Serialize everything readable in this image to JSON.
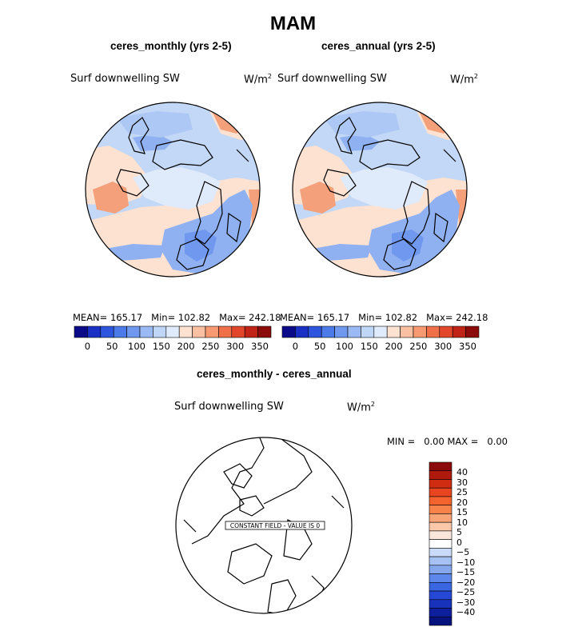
{
  "title": "MAM",
  "panels": [
    {
      "subtitle": "ceres_monthly (yrs 2-5)",
      "variable": "Surf downwelling SW",
      "units_base": "W/m",
      "units_exp": "2",
      "stats": {
        "mean_label": "MEAN=",
        "mean": "165.17",
        "min_label": "Min=",
        "min": "102.82",
        "max_label": "Max=",
        "max": "242.18"
      }
    },
    {
      "subtitle": "ceres_annual (yrs 2-5)",
      "variable": "Surf downwelling SW",
      "units_base": "W/m",
      "units_exp": "2",
      "stats": {
        "mean_label": "MEAN=",
        "mean": "165.17",
        "min_label": "Min=",
        "min": "102.82",
        "max_label": "Max=",
        "max": "242.18"
      }
    }
  ],
  "diff_panel": {
    "subtitle": "ceres_monthly - ceres_annual",
    "variable": "Surf downwelling SW",
    "units_base": "W/m",
    "units_exp": "2",
    "min_label": "MIN =",
    "min": "0.00",
    "max_label": "MAX =",
    "max": "0.00",
    "annotation": "CONSTANT FIELD - VALUE IS 0"
  },
  "chart_data": [
    {
      "type": "heatmap",
      "title": "ceres_monthly (yrs 2-5)",
      "projection": "north-polar-stereographic",
      "colorbar_labels": [
        "0",
        "50",
        "100",
        "150",
        "200",
        "250",
        "300",
        "350"
      ],
      "colorbar_colors": [
        "#0b0b8a",
        "#1a30c4",
        "#2d55dd",
        "#4c7ae9",
        "#7198ef",
        "#9bb9f4",
        "#c0d6f7",
        "#e0ecfb",
        "#fde1d1",
        "#fbc0a2",
        "#f79a72",
        "#f0704a",
        "#e2472b",
        "#c02416",
        "#8b0a0a"
      ],
      "mean": 165.17,
      "min": 102.82,
      "max": 242.18
    },
    {
      "type": "heatmap",
      "title": "ceres_annual (yrs 2-5)",
      "projection": "north-polar-stereographic",
      "colorbar_labels": [
        "0",
        "50",
        "100",
        "150",
        "200",
        "250",
        "300",
        "350"
      ],
      "colorbar_colors": [
        "#0b0b8a",
        "#1a30c4",
        "#2d55dd",
        "#4c7ae9",
        "#7198ef",
        "#9bb9f4",
        "#c0d6f7",
        "#e0ecfb",
        "#fde1d1",
        "#fbc0a2",
        "#f79a72",
        "#f0704a",
        "#e2472b",
        "#c02416",
        "#8b0a0a"
      ],
      "mean": 165.17,
      "min": 102.82,
      "max": 242.18
    },
    {
      "type": "heatmap",
      "title": "ceres_monthly - ceres_annual",
      "projection": "north-polar-stereographic",
      "colorbar_labels": [
        "40",
        "30",
        "25",
        "20",
        "15",
        "10",
        "5",
        "0",
        "−5",
        "−10",
        "−15",
        "−20",
        "−25",
        "−30",
        "−40"
      ],
      "colorbar_colors": [
        "#8b0a0a",
        "#b01a0c",
        "#cf2c12",
        "#e8441f",
        "#f4622d",
        "#f7824a",
        "#f9a476",
        "#fbc8aa",
        "#fbe6dc",
        "#ffffff",
        "#c9dbf8",
        "#a6c1f3",
        "#84a7ee",
        "#5d87ea",
        "#3b66e2",
        "#2549d6",
        "#1832bc",
        "#0d1f9c",
        "#06127e"
      ],
      "min": 0.0,
      "max": 0.0
    }
  ]
}
